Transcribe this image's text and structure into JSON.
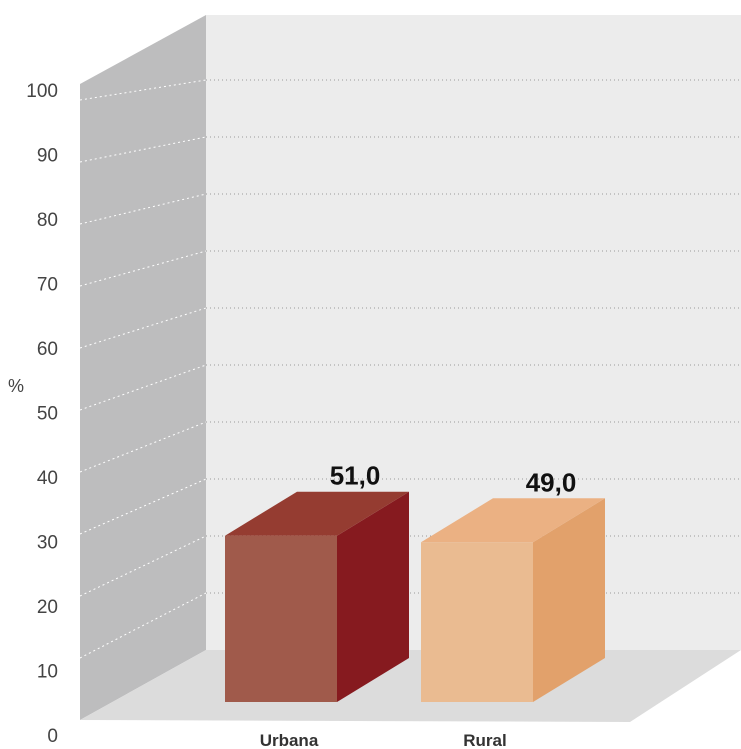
{
  "chart_data": {
    "type": "bar",
    "categories": [
      "Urbana",
      "Rural"
    ],
    "values": [
      51.0,
      49.0
    ],
    "value_labels": [
      "51,0",
      "49,0"
    ],
    "ylabel": "%",
    "ylim": [
      0,
      100
    ],
    "yticks": [
      "0",
      "10",
      "20",
      "30",
      "40",
      "50",
      "60",
      "70",
      "80",
      "90",
      "100"
    ],
    "grid": true,
    "style": "3d",
    "colors": {
      "urbana_front": "#a05a4b",
      "urbana_side": "#861a1f",
      "urbana_top": "#953c31",
      "rural_front": "#eabb91",
      "rural_side": "#e2a16b",
      "rural_top": "#ebb183",
      "back_wall": "#ececec",
      "side_wall": "#bdbdbe",
      "floor": "#dcdcdc"
    }
  }
}
